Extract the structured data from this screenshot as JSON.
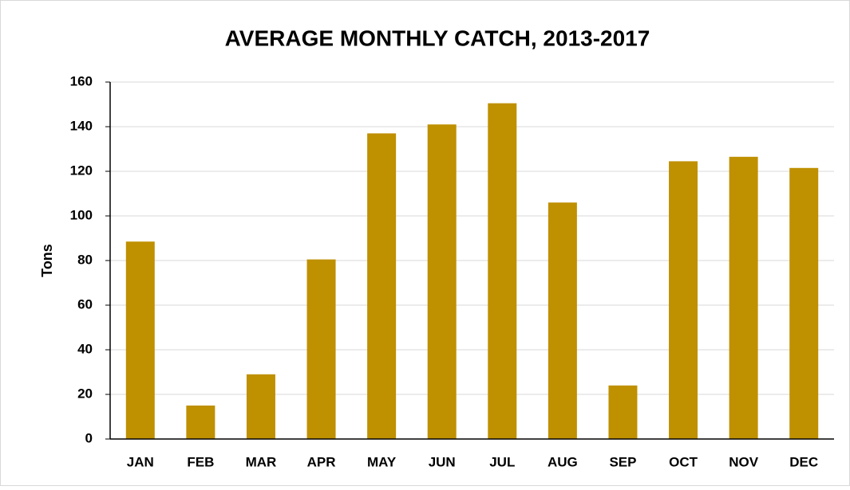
{
  "chart_data": {
    "type": "bar",
    "title": "AVERAGE MONTHLY CATCH, 2013-2017",
    "y_label": "Tons",
    "categories": [
      "JAN",
      "FEB",
      "MAR",
      "APR",
      "MAY",
      "JUN",
      "JUL",
      "AUG",
      "SEP",
      "OCT",
      "NOV",
      "DEC"
    ],
    "values": [
      88.5,
      15,
      29,
      80.5,
      137,
      141,
      150.5,
      106,
      24,
      124.5,
      126.5,
      121.5
    ],
    "color": "#bf9000",
    "ylim": [
      0,
      160
    ],
    "yticks": [
      0,
      20,
      40,
      60,
      80,
      100,
      120,
      140,
      160
    ],
    "grid": true
  }
}
